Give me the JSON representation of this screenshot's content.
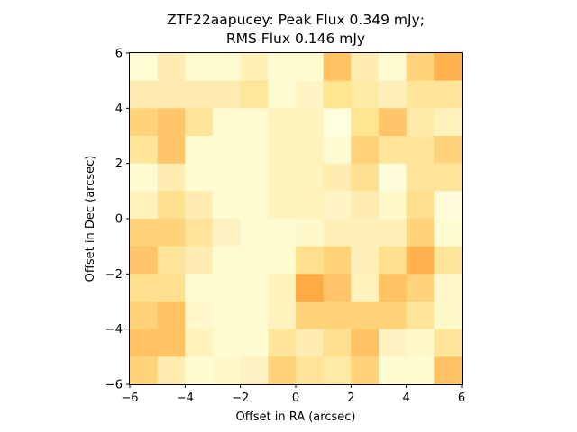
{
  "chart_data": {
    "type": "heatmap",
    "title_lines": [
      "ZTF22aapucey: Peak Flux 0.349 mJy;",
      "RMS Flux 0.146 mJy"
    ],
    "xlabel": "Offset in RA (arcsec)",
    "ylabel": "Offset in Dec (arcsec)",
    "xlim": [
      -6,
      6
    ],
    "ylim": [
      -6,
      6
    ],
    "xticks": [
      "−6",
      "−4",
      "−2",
      "0",
      "2",
      "4",
      "6"
    ],
    "yticks": [
      "−6",
      "−4",
      "−2",
      "0",
      "2",
      "4",
      "6"
    ],
    "colormap": "YlOrBr",
    "grid": false,
    "cell_colors": [
      [
        "#fffbd2",
        "#ffebaf",
        "#fffbd1",
        "#fffbd1",
        "#fff0b6",
        "#fffbd1",
        "#fffbd1",
        "#ffc364",
        "#ffecb0",
        "#fffbd1",
        "#ffd37a",
        "#ffb24e"
      ],
      [
        "#ffebaf",
        "#ffebaf",
        "#ffebaf",
        "#ffebaf",
        "#ffe79a",
        "#fffbd1",
        "#fff5c4",
        "#ffe58f",
        "#ffeaa5",
        "#ffefb9",
        "#ffe59a",
        "#ffe59a"
      ],
      [
        "#ffd37a",
        "#ffc568",
        "#ffe59a",
        "#fffad0",
        "#fffad0",
        "#fff2bd",
        "#fff2bd",
        "#ffffdf",
        "#ffe58f",
        "#ffc568",
        "#ffe9a7",
        "#fff2bd"
      ],
      [
        "#ffe59a",
        "#ffc568",
        "#fffbd1",
        "#fffbd1",
        "#fffbd1",
        "#fff2bd",
        "#fff2bd",
        "#fffbd1",
        "#ffd37a",
        "#ffe59a",
        "#ffe59a",
        "#ffd37a"
      ],
      [
        "#fffbd1",
        "#ffecb0",
        "#fffbd1",
        "#fffad0",
        "#fffad0",
        "#fff2bd",
        "#fff2bd",
        "#ffecb0",
        "#ffe08f",
        "#fffdd9",
        "#ffe59a",
        "#ffe59a"
      ],
      [
        "#fff2bd",
        "#ffe08f",
        "#ffecb0",
        "#fffad0",
        "#fffad0",
        "#fff2bd",
        "#fff2bd",
        "#fff5c4",
        "#ffecb0",
        "#fff8ca",
        "#ffe08f",
        "#fffdd9"
      ],
      [
        "#ffd37a",
        "#ffd37a",
        "#ffe59a",
        "#fff2c2",
        "#fffbd1",
        "#fffbd1",
        "#fff8ca",
        "#ffefb9",
        "#ffefb9",
        "#ffefb9",
        "#ffd37a",
        "#fffbd1"
      ],
      [
        "#ffc568",
        "#ffe59a",
        "#ffecb0",
        "#fffad0",
        "#fffad0",
        "#fffbd1",
        "#ffe08f",
        "#ffd37a",
        "#ffefb9",
        "#ffe08f",
        "#ffb24e",
        "#ffe59a"
      ],
      [
        "#ffe08f",
        "#ffe08f",
        "#fffbd1",
        "#fffbd1",
        "#fffbd1",
        "#fff2bd",
        "#ffab45",
        "#ffc568",
        "#fff2bd",
        "#ffc364",
        "#ffd37a",
        "#fff8ca"
      ],
      [
        "#ffd37a",
        "#ffc364",
        "#fff8ca",
        "#fffbd1",
        "#fffbd1",
        "#fff2bd",
        "#ffd37a",
        "#ffd37a",
        "#ffd37a",
        "#ffd37a",
        "#ffe59a",
        "#fff8ca"
      ],
      [
        "#ffc364",
        "#ffc364",
        "#fff2bd",
        "#fffbd1",
        "#fffbd1",
        "#ffe59a",
        "#ffecb0",
        "#ffe08f",
        "#ffc364",
        "#fff2c2",
        "#fff8ca",
        "#ffe59a"
      ],
      [
        "#ffd37a",
        "#ffecb0",
        "#fffbd1",
        "#fff8ca",
        "#fff2c2",
        "#ffd37a",
        "#ffe59a",
        "#ffe9a7",
        "#ffd37a",
        "#fffbd1",
        "#fffbd1",
        "#ffc364"
      ]
    ]
  }
}
